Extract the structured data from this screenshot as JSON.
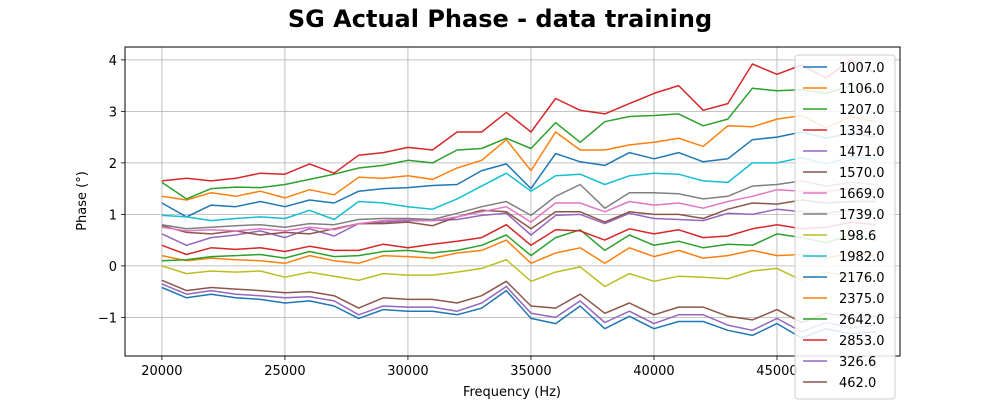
{
  "chart_data": {
    "type": "line",
    "title": "SG Actual Phase - data training",
    "xlabel": "Frequency (Hz)",
    "ylabel": "Phase (°)",
    "xlim": [
      18500,
      50000
    ],
    "ylim": [
      -1.75,
      4.25
    ],
    "xticks": [
      20000,
      25000,
      30000,
      35000,
      40000,
      45000
    ],
    "yticks": [
      -1,
      0,
      1,
      2,
      3,
      4
    ],
    "xtick_labels": [
      "20000",
      "25000",
      "30000",
      "35000",
      "40000",
      "45000"
    ],
    "ytick_labels": [
      "−1",
      "0",
      "1",
      "2",
      "3",
      "4"
    ],
    "grid": true,
    "legend_position": "right",
    "x": [
      20000,
      21000,
      22000,
      23000,
      24000,
      25000,
      26000,
      27000,
      28000,
      29000,
      30000,
      31000,
      32000,
      33000,
      34000,
      35000,
      36000,
      37000,
      38000,
      39000,
      40000,
      41000,
      42000,
      43000,
      44000,
      45000,
      46000,
      47000,
      48000,
      49000
    ],
    "series": [
      {
        "name": "1007.0",
        "color": "#1f77b4",
        "values": [
          1.22,
          0.95,
          1.18,
          1.15,
          1.25,
          1.15,
          1.28,
          1.22,
          1.45,
          1.5,
          1.52,
          1.56,
          1.58,
          1.85,
          1.98,
          1.5,
          2.18,
          2.02,
          1.95,
          2.2,
          2.08,
          2.2,
          2.02,
          2.08,
          2.45,
          2.5,
          2.6,
          2.48,
          2.58,
          2.5
        ]
      },
      {
        "name": "1106.0",
        "color": "#ff7f0e",
        "values": [
          1.35,
          1.28,
          1.42,
          1.35,
          1.45,
          1.32,
          1.48,
          1.38,
          1.72,
          1.7,
          1.75,
          1.68,
          1.9,
          2.05,
          2.45,
          1.85,
          2.6,
          2.25,
          2.25,
          2.35,
          2.4,
          2.48,
          2.32,
          2.72,
          2.7,
          2.85,
          2.92,
          2.68,
          2.9,
          2.8
        ]
      },
      {
        "name": "1207.0",
        "color": "#2ca02c",
        "values": [
          1.62,
          1.3,
          1.5,
          1.53,
          1.52,
          1.58,
          1.68,
          1.78,
          1.9,
          1.95,
          2.05,
          2.0,
          2.25,
          2.28,
          2.48,
          2.28,
          2.78,
          2.4,
          2.8,
          2.9,
          2.92,
          2.95,
          2.72,
          2.85,
          3.45,
          3.4,
          3.42,
          3.35,
          3.5,
          3.4
        ]
      },
      {
        "name": "1334.0",
        "color": "#d62728",
        "values": [
          1.65,
          1.7,
          1.65,
          1.7,
          1.8,
          1.78,
          1.98,
          1.8,
          2.15,
          2.2,
          2.3,
          2.25,
          2.6,
          2.6,
          2.98,
          2.6,
          3.25,
          3.02,
          2.95,
          3.15,
          3.35,
          3.5,
          3.02,
          3.15,
          3.92,
          3.72,
          3.9,
          3.65,
          4.0,
          3.75
        ]
      },
      {
        "name": "1471.0",
        "color": "#9467bd",
        "values": [
          0.62,
          0.4,
          0.55,
          0.6,
          0.68,
          0.55,
          0.72,
          0.58,
          0.82,
          0.85,
          0.88,
          0.88,
          0.9,
          0.98,
          1.02,
          0.6,
          0.98,
          1.0,
          0.82,
          1.02,
          0.92,
          0.9,
          0.88,
          1.02,
          1.0,
          1.1,
          1.05,
          1.02,
          1.08,
          1.05
        ]
      },
      {
        "name": "1570.0",
        "color": "#8c564b",
        "values": [
          0.78,
          0.65,
          0.62,
          0.68,
          0.6,
          0.65,
          0.62,
          0.72,
          0.82,
          0.82,
          0.85,
          0.78,
          0.95,
          1.08,
          1.05,
          0.72,
          1.05,
          1.05,
          0.85,
          1.05,
          1.0,
          1.0,
          0.92,
          1.1,
          1.22,
          1.2,
          1.28,
          1.22,
          1.25,
          1.25
        ]
      },
      {
        "name": "1669.0",
        "color": "#e377c2",
        "values": [
          0.75,
          0.68,
          0.7,
          0.68,
          0.72,
          0.68,
          0.75,
          0.7,
          0.82,
          0.88,
          0.9,
          0.88,
          0.95,
          1.05,
          1.15,
          0.85,
          1.22,
          1.22,
          1.05,
          1.25,
          1.18,
          1.22,
          1.12,
          1.25,
          1.35,
          1.48,
          1.45,
          1.45,
          1.5,
          1.48
        ]
      },
      {
        "name": "1739.0",
        "color": "#7f7f7f",
        "values": [
          0.8,
          0.72,
          0.75,
          0.78,
          0.8,
          0.75,
          0.82,
          0.8,
          0.9,
          0.92,
          0.92,
          0.9,
          1.02,
          1.15,
          1.25,
          0.98,
          1.35,
          1.58,
          1.12,
          1.42,
          1.42,
          1.4,
          1.3,
          1.35,
          1.55,
          1.58,
          1.65,
          1.55,
          1.62,
          1.58
        ]
      },
      {
        "name": "198.6",
        "color": "#bcbd22",
        "values": [
          0.0,
          -0.15,
          -0.1,
          -0.12,
          -0.1,
          -0.22,
          -0.12,
          -0.2,
          -0.28,
          -0.15,
          -0.18,
          -0.18,
          -0.12,
          -0.05,
          0.12,
          -0.3,
          -0.12,
          -0.02,
          -0.4,
          -0.15,
          -0.3,
          -0.2,
          -0.22,
          -0.25,
          -0.1,
          -0.05,
          -0.28,
          -0.12,
          -0.2,
          -0.18
        ]
      },
      {
        "name": "1982.0",
        "color": "#17becf",
        "values": [
          0.98,
          0.95,
          0.88,
          0.92,
          0.95,
          0.92,
          1.08,
          0.9,
          1.25,
          1.22,
          1.15,
          1.1,
          1.3,
          1.55,
          1.8,
          1.45,
          1.75,
          1.78,
          1.58,
          1.75,
          1.8,
          1.78,
          1.65,
          1.62,
          2.0,
          2.0,
          2.1,
          1.98,
          2.12,
          2.08
        ]
      },
      {
        "name": "2176.0",
        "color": "#1f77b4",
        "values": [
          -0.42,
          -0.62,
          -0.55,
          -0.62,
          -0.65,
          -0.72,
          -0.68,
          -0.78,
          -1.02,
          -0.85,
          -0.88,
          -0.88,
          -0.95,
          -0.82,
          -0.48,
          -1.02,
          -1.12,
          -0.78,
          -1.22,
          -0.98,
          -1.22,
          -1.08,
          -1.08,
          -1.25,
          -1.35,
          -1.12,
          -1.4,
          -1.22,
          -1.32,
          -1.28
        ]
      },
      {
        "name": "2375.0",
        "color": "#ff7f0e",
        "values": [
          0.2,
          0.1,
          0.15,
          0.12,
          0.1,
          0.05,
          0.2,
          0.1,
          0.05,
          0.2,
          0.18,
          0.15,
          0.25,
          0.3,
          0.5,
          0.05,
          0.25,
          0.35,
          0.05,
          0.35,
          0.18,
          0.3,
          0.15,
          0.2,
          0.3,
          0.2,
          0.22,
          0.15,
          0.25,
          0.2
        ]
      },
      {
        "name": "2642.0",
        "color": "#2ca02c",
        "values": [
          0.1,
          0.12,
          0.18,
          0.2,
          0.22,
          0.15,
          0.28,
          0.18,
          0.2,
          0.28,
          0.3,
          0.25,
          0.3,
          0.4,
          0.6,
          0.2,
          0.55,
          0.7,
          0.3,
          0.6,
          0.4,
          0.48,
          0.35,
          0.42,
          0.4,
          0.62,
          0.55,
          0.45,
          0.6,
          0.5
        ]
      },
      {
        "name": "2853.0",
        "color": "#d62728",
        "values": [
          0.4,
          0.22,
          0.35,
          0.32,
          0.35,
          0.28,
          0.38,
          0.3,
          0.3,
          0.42,
          0.35,
          0.42,
          0.48,
          0.55,
          0.8,
          0.4,
          0.7,
          0.68,
          0.5,
          0.72,
          0.62,
          0.7,
          0.55,
          0.58,
          0.72,
          0.8,
          0.72,
          0.75,
          0.85,
          0.8
        ]
      },
      {
        "name": "326.6",
        "color": "#9467bd",
        "values": [
          -0.35,
          -0.55,
          -0.48,
          -0.55,
          -0.58,
          -0.62,
          -0.6,
          -0.68,
          -0.95,
          -0.78,
          -0.8,
          -0.8,
          -0.88,
          -0.72,
          -0.4,
          -0.92,
          -1.0,
          -0.68,
          -1.1,
          -0.88,
          -1.12,
          -0.95,
          -0.95,
          -1.15,
          -1.25,
          -1.02,
          -1.28,
          -1.1,
          -1.2,
          -1.15
        ]
      },
      {
        "name": "462.0",
        "color": "#8c564b",
        "values": [
          -0.28,
          -0.48,
          -0.42,
          -0.45,
          -0.48,
          -0.52,
          -0.5,
          -0.58,
          -0.82,
          -0.62,
          -0.65,
          -0.65,
          -0.72,
          -0.58,
          -0.3,
          -0.78,
          -0.82,
          -0.55,
          -0.92,
          -0.72,
          -0.95,
          -0.8,
          -0.8,
          -0.98,
          -1.05,
          -0.85,
          -1.1,
          -0.92,
          -1.0,
          -0.98
        ]
      }
    ]
  }
}
